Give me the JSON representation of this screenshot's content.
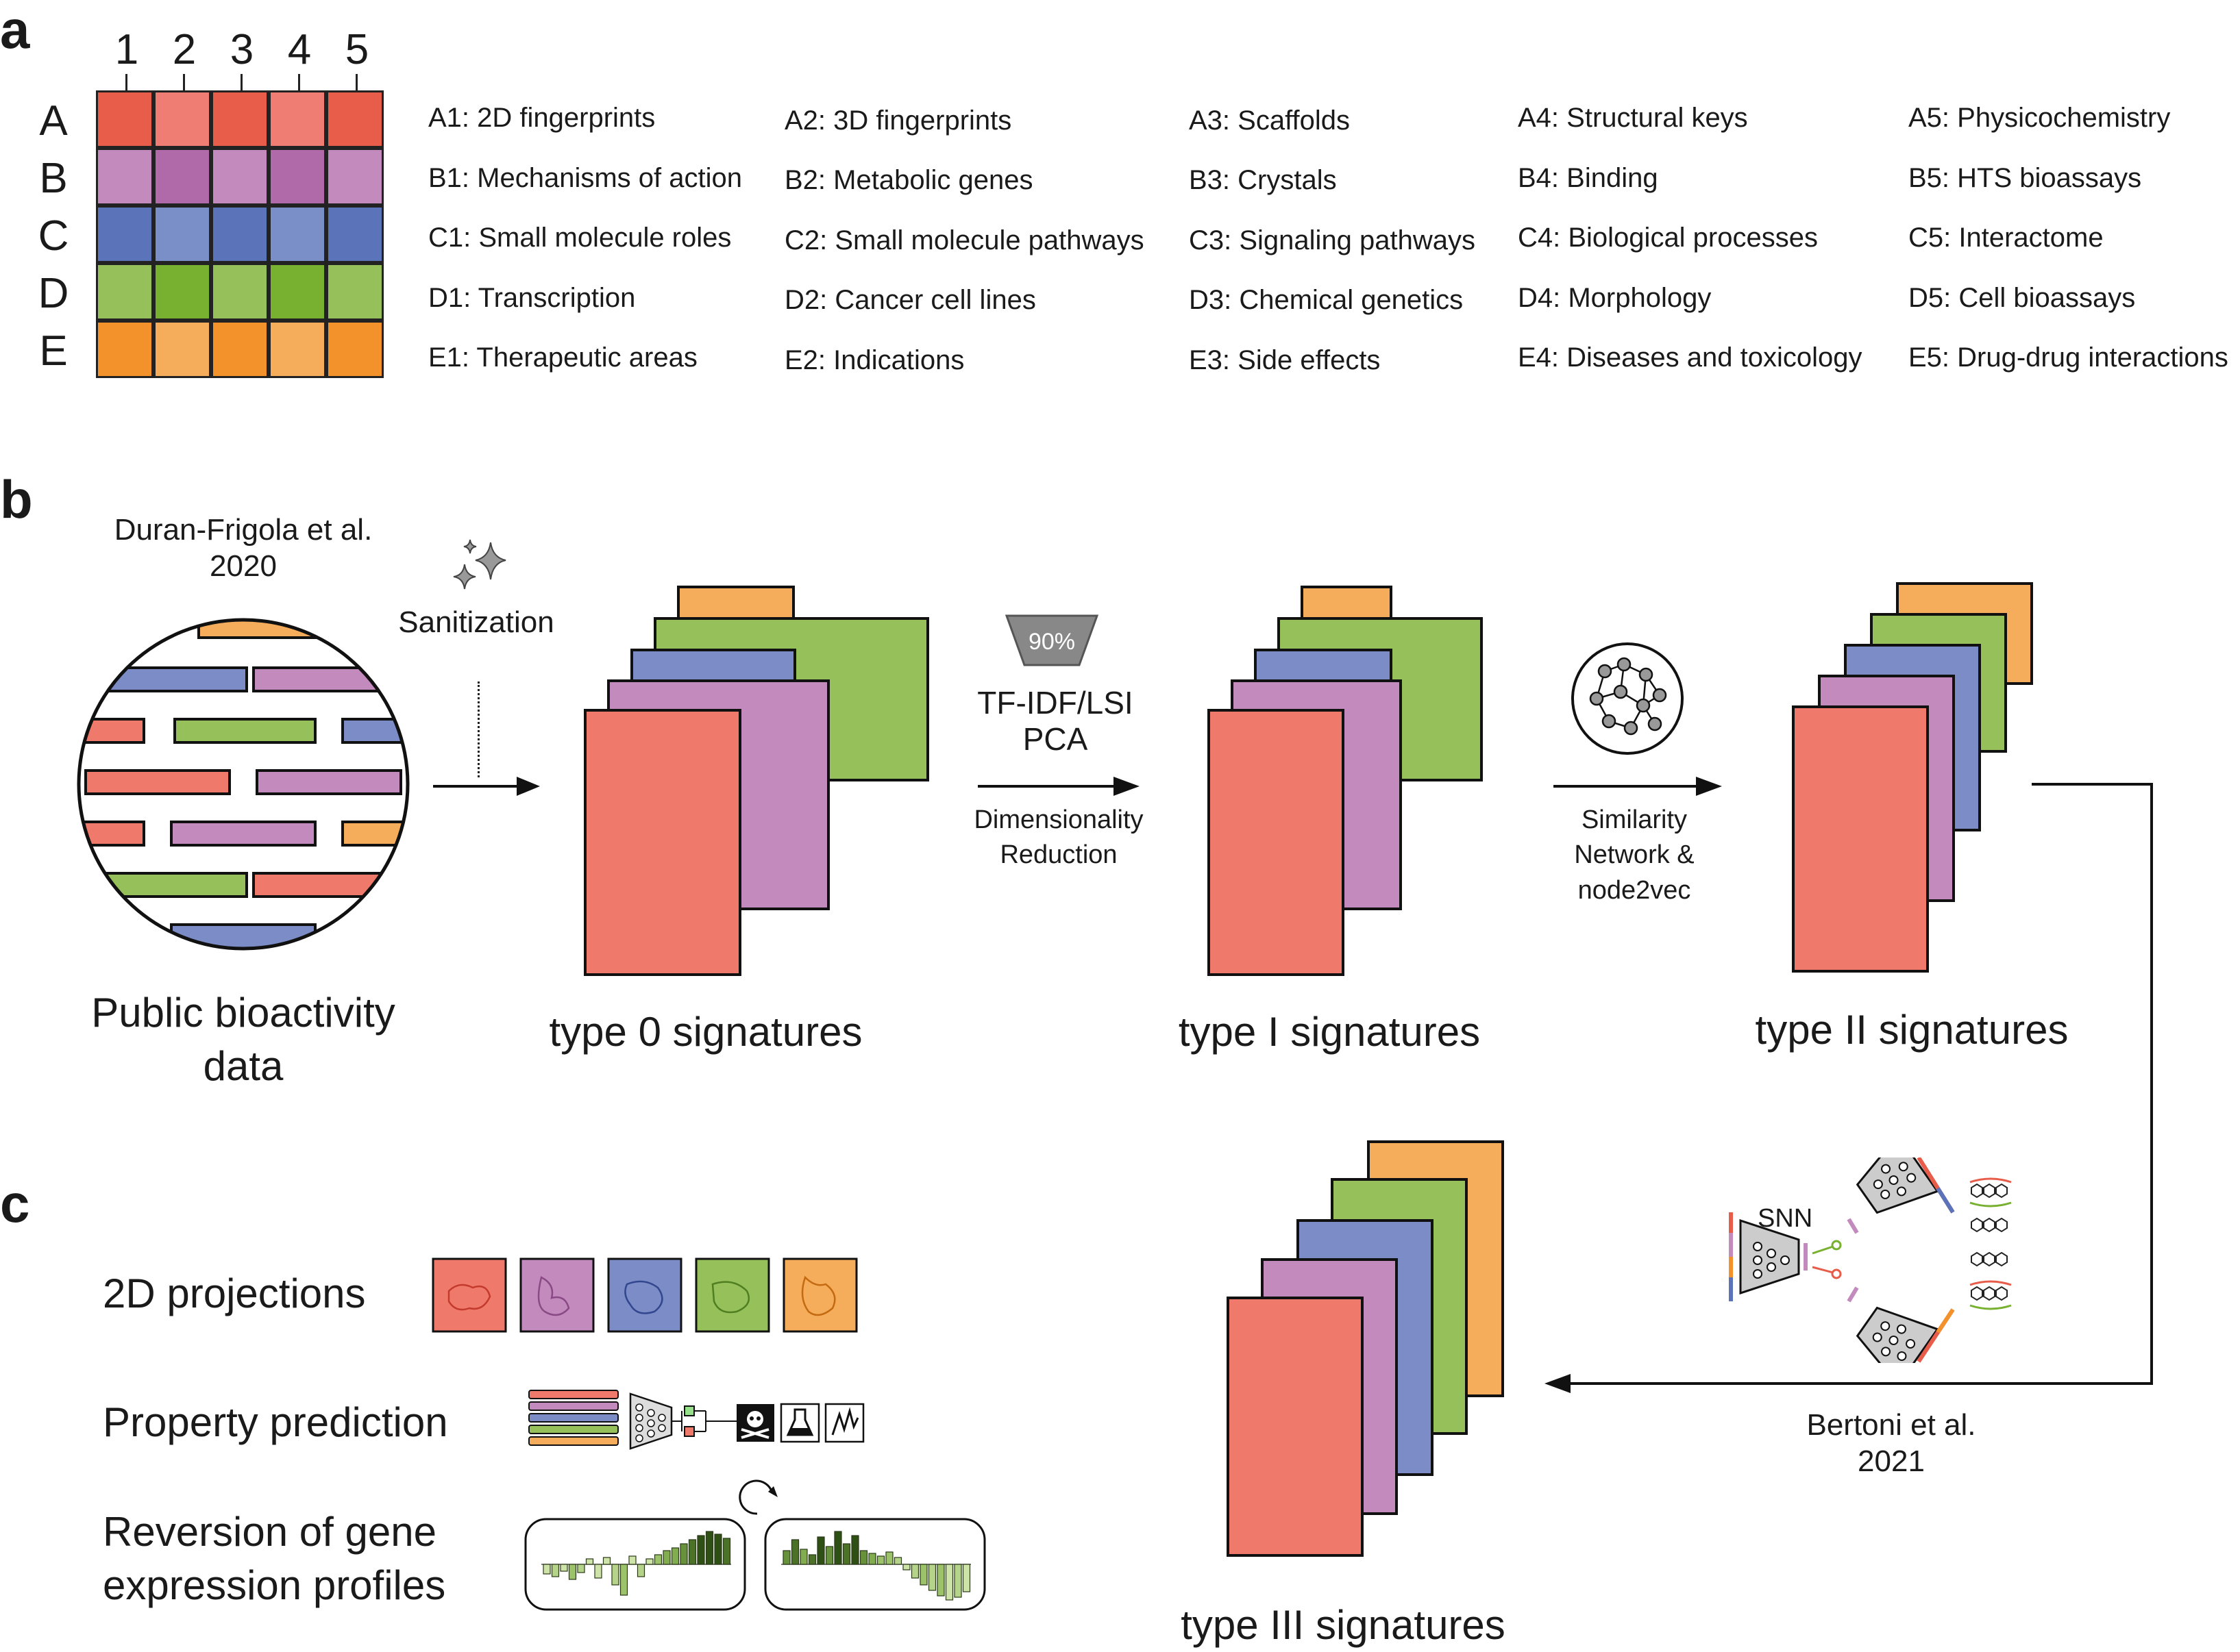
{
  "panels": {
    "a": "a",
    "b": "b",
    "c": "c"
  },
  "grid": {
    "columns": [
      "1",
      "2",
      "3",
      "4",
      "5"
    ],
    "rows": [
      "A",
      "B",
      "C",
      "D",
      "E"
    ],
    "colors": {
      "A": [
        "#e85c4a",
        "#ef7d73",
        "#e85c4a",
        "#ef7d73",
        "#e85c4a"
      ],
      "B": [
        "#c38bbd",
        "#b06aa9",
        "#c38bbd",
        "#b06aa9",
        "#c38bbd"
      ],
      "C": [
        "#5b73b8",
        "#7a8fc8",
        "#5b73b8",
        "#7a8fc8",
        "#5b73b8"
      ],
      "D": [
        "#95c05a",
        "#78b030",
        "#95c05a",
        "#78b030",
        "#95c05a"
      ],
      "E": [
        "#f3922a",
        "#f5ad5c",
        "#f3922a",
        "#f5ad5c",
        "#f3922a"
      ]
    }
  },
  "legend": [
    [
      "A1: 2D fingerprints",
      "A2: 3D fingerprints",
      "A3: Scaffolds",
      "A4: Structural keys",
      "A5: Physicochemistry"
    ],
    [
      "B1: Mechanisms of action",
      "B2: Metabolic genes",
      "B3: Crystals",
      "B4: Binding",
      "B5: HTS bioassays"
    ],
    [
      "C1: Small molecule roles",
      "C2: Small molecule pathways",
      "C3: Signaling pathways",
      "C4: Biological processes",
      "C5: Interactome"
    ],
    [
      "D1: Transcription",
      "D2: Cancer cell lines",
      "D3: Chemical genetics",
      "D4: Morphology",
      "D5: Cell bioassays"
    ],
    [
      "E1: Therapeutic areas",
      "E2: Indications",
      "E3: Side effects",
      "E4: Diseases and toxicology",
      "E5: Drug-drug interactions"
    ]
  ],
  "panel_b": {
    "citation1_line1": "Duran-Frigola et al.",
    "citation1_line2": "2020",
    "sanitization": "Sanitization",
    "public_data_line1": "Public bioactivity",
    "public_data_line2": "data",
    "type0": "type 0 signatures",
    "funnel_pct": "90%",
    "method_line1": "TF-IDF/LSI",
    "method_line2": "PCA",
    "dimred_line1": "Dimensionality",
    "dimred_line2": "Reduction",
    "type1": "type I signatures",
    "simnet_line1": "Similarity",
    "simnet_line2": "Network &",
    "simnet_line3": "node2vec",
    "type2": "type II signatures",
    "snn": "SNN",
    "citation2_line1": "Bertoni et al.",
    "citation2_line2": "2021",
    "type3": "type III signatures"
  },
  "panel_c": {
    "projections": "2D projections",
    "property": "Property prediction",
    "reversion_line1": "Reversion of gene",
    "reversion_line2": "expression profiles"
  },
  "colors": {
    "red": "#ef7a6c",
    "purple": "#c38bbd",
    "blue": "#7b8cc6",
    "green": "#96c05a",
    "orange": "#f5ad5c"
  }
}
